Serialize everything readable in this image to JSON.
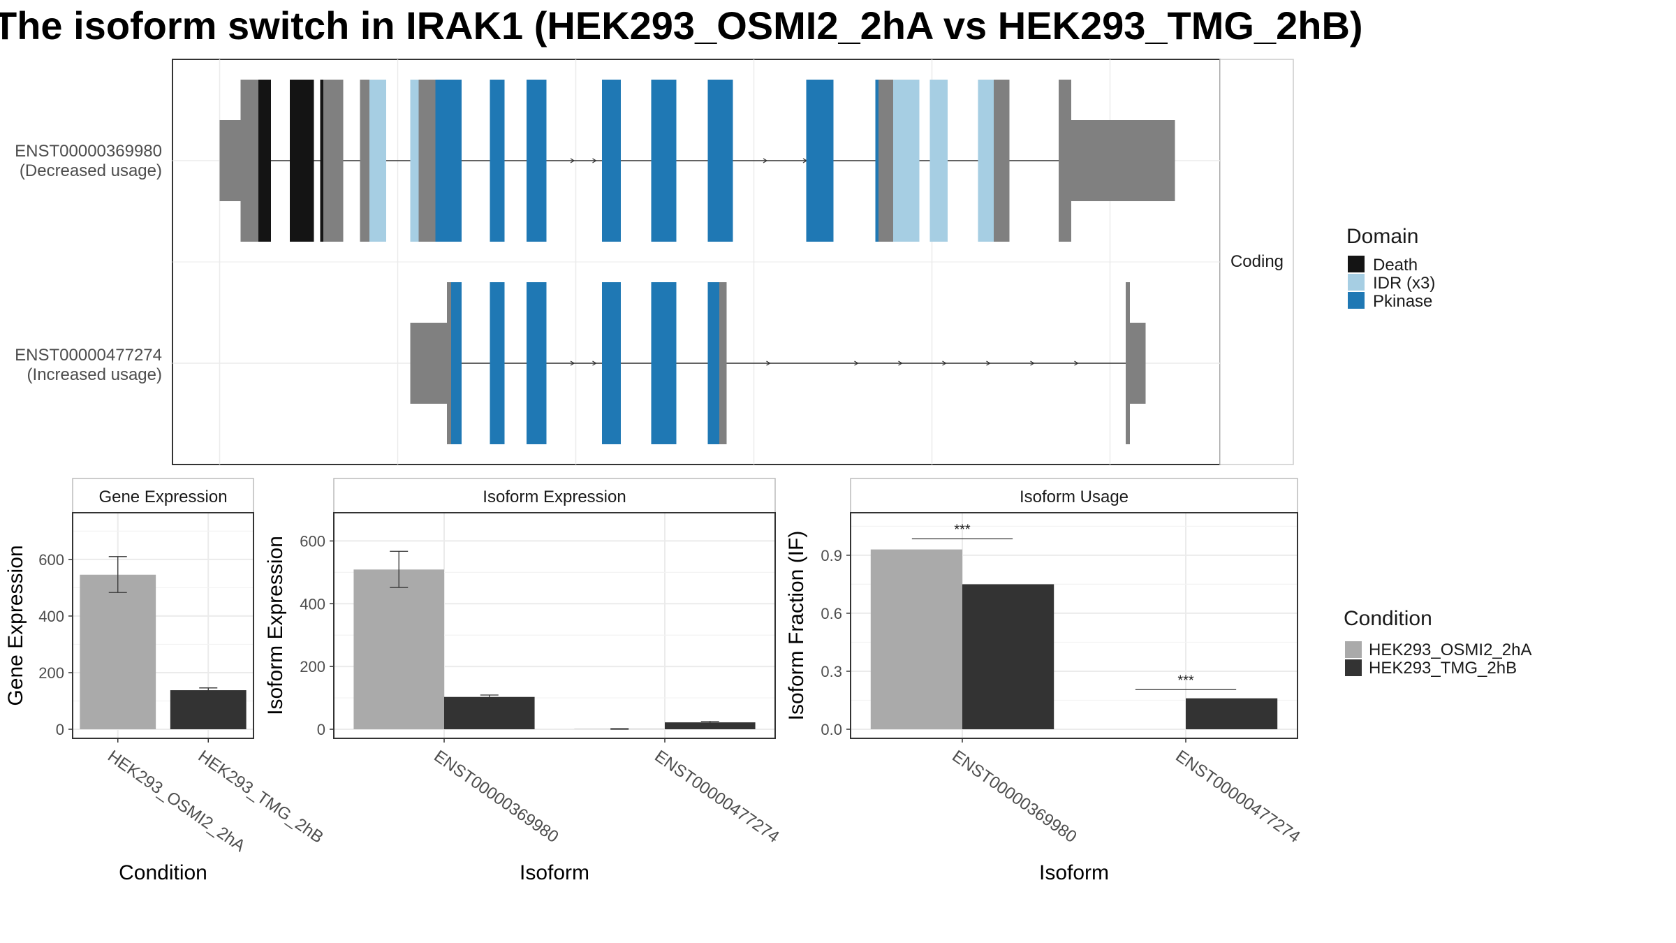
{
  "title": "The isoform switch in IRAK1 (HEK293_OSMI2_2hA vs HEK293_TMG_2hB)",
  "colors": {
    "death": "#141414",
    "idr": "#a6cee3",
    "pkinase": "#1f78b4",
    "other": "#808080",
    "cond_a": "#aaaaaa",
    "cond_b": "#333333",
    "grid": "#ebebeb",
    "panel_border": "#333333",
    "strip_border": "#bbbbbb"
  },
  "structure_panel": {
    "facet_label": "Coding",
    "transcripts": [
      {
        "id": "ENST00000369980",
        "usage": "(Decreased usage)",
        "exons": [
          {
            "start": 0.045,
            "end": 0.065,
            "type": "utr"
          },
          {
            "start": 0.065,
            "end": 0.082,
            "type": "other"
          },
          {
            "start": 0.082,
            "end": 0.094,
            "type": "death"
          },
          {
            "start": 0.112,
            "end": 0.135,
            "type": "death"
          },
          {
            "start": 0.141,
            "end": 0.144,
            "type": "death"
          },
          {
            "start": 0.144,
            "end": 0.163,
            "type": "other"
          },
          {
            "start": 0.179,
            "end": 0.188,
            "type": "other"
          },
          {
            "start": 0.188,
            "end": 0.204,
            "type": "idr"
          },
          {
            "start": 0.227,
            "end": 0.235,
            "type": "idr"
          },
          {
            "start": 0.235,
            "end": 0.251,
            "type": "other"
          },
          {
            "start": 0.251,
            "end": 0.276,
            "type": "pkinase"
          },
          {
            "start": 0.303,
            "end": 0.317,
            "type": "pkinase"
          },
          {
            "start": 0.338,
            "end": 0.357,
            "type": "pkinase"
          },
          {
            "start": 0.41,
            "end": 0.428,
            "type": "pkinase"
          },
          {
            "start": 0.457,
            "end": 0.481,
            "type": "pkinase"
          },
          {
            "start": 0.511,
            "end": 0.535,
            "type": "pkinase"
          },
          {
            "start": 0.605,
            "end": 0.631,
            "type": "pkinase"
          },
          {
            "start": 0.671,
            "end": 0.674,
            "type": "pkinase"
          },
          {
            "start": 0.674,
            "end": 0.688,
            "type": "other"
          },
          {
            "start": 0.688,
            "end": 0.713,
            "type": "idr"
          },
          {
            "start": 0.723,
            "end": 0.74,
            "type": "idr"
          },
          {
            "start": 0.769,
            "end": 0.784,
            "type": "idr"
          },
          {
            "start": 0.784,
            "end": 0.799,
            "type": "other"
          },
          {
            "start": 0.846,
            "end": 0.858,
            "type": "other"
          },
          {
            "start": 0.858,
            "end": 0.957,
            "type": "utr"
          }
        ],
        "arrows": [
          0.382,
          0.403,
          0.566,
          0.604
        ]
      },
      {
        "id": "ENST00000477274",
        "usage": "(Increased usage)",
        "exons": [
          {
            "start": 0.227,
            "end": 0.262,
            "type": "utr"
          },
          {
            "start": 0.262,
            "end": 0.266,
            "type": "other"
          },
          {
            "start": 0.266,
            "end": 0.276,
            "type": "pkinase"
          },
          {
            "start": 0.303,
            "end": 0.317,
            "type": "pkinase"
          },
          {
            "start": 0.338,
            "end": 0.357,
            "type": "pkinase"
          },
          {
            "start": 0.41,
            "end": 0.428,
            "type": "pkinase"
          },
          {
            "start": 0.457,
            "end": 0.481,
            "type": "pkinase"
          },
          {
            "start": 0.511,
            "end": 0.522,
            "type": "pkinase"
          },
          {
            "start": 0.522,
            "end": 0.529,
            "type": "other"
          },
          {
            "start": 0.91,
            "end": 0.914,
            "type": "other"
          },
          {
            "start": 0.914,
            "end": 0.929,
            "type": "utr"
          }
        ],
        "arrows": [
          0.382,
          0.403,
          0.569,
          0.653,
          0.695,
          0.737,
          0.779,
          0.821,
          0.863
        ]
      }
    ]
  },
  "domain_legend": {
    "title": "Domain",
    "items": [
      {
        "label": "Death",
        "color": "#141414"
      },
      {
        "label": "IDR (x3)",
        "color": "#a6cee3"
      },
      {
        "label": "Pkinase",
        "color": "#1f78b4"
      }
    ]
  },
  "condition_legend": {
    "title": "Condition",
    "items": [
      {
        "label": "HEK293_OSMI2_2hA",
        "color": "#aaaaaa"
      },
      {
        "label": "HEK293_TMG_2hB",
        "color": "#333333"
      }
    ]
  },
  "chart_data": [
    {
      "type": "bar",
      "title": "Gene Expression",
      "xlabel": "Condition",
      "ylabel": "Gene Expression",
      "categories": [
        "HEK293_OSMI2_2hA",
        "HEK293_TMG_2hB"
      ],
      "values": [
        546,
        138
      ],
      "error_low": [
        483,
        130
      ],
      "error_high": [
        610,
        146
      ],
      "yticks": [
        0,
        200,
        400,
        600
      ],
      "ylim": [
        0,
        765
      ],
      "grid": true
    },
    {
      "type": "bar",
      "title": "Isoform Expression",
      "xlabel": "Isoform",
      "ylabel": "Isoform Expression",
      "categories": [
        "ENST00000369980",
        "ENST00000477274"
      ],
      "series": [
        {
          "name": "HEK293_OSMI2_2hA",
          "values": [
            509,
            1
          ],
          "error_low": [
            452,
            0
          ],
          "error_high": [
            567,
            2
          ]
        },
        {
          "name": "HEK293_TMG_2hB",
          "values": [
            103,
            22
          ],
          "error_low": [
            97,
            19
          ],
          "error_high": [
            109,
            25
          ]
        }
      ],
      "yticks": [
        0,
        200,
        400,
        600
      ],
      "ylim": [
        0,
        690
      ],
      "grid": true
    },
    {
      "type": "bar",
      "title": "Isoform Usage",
      "xlabel": "Isoform",
      "ylabel": "Isoform Fraction (IF)",
      "categories": [
        "ENST00000369980",
        "ENST00000477274"
      ],
      "series": [
        {
          "name": "HEK293_OSMI2_2hA",
          "values": [
            0.93,
            0.0
          ]
        },
        {
          "name": "HEK293_TMG_2hB",
          "values": [
            0.75,
            0.16
          ]
        }
      ],
      "yticks": [
        0.0,
        0.3,
        0.6,
        0.9
      ],
      "ytick_labels": [
        "0.0",
        "0.3",
        "0.6",
        "0.9"
      ],
      "ylim": [
        0,
        1.12
      ],
      "significance": [
        {
          "category_index": 0,
          "label": "***",
          "y": 0.985
        },
        {
          "category_index": 1,
          "label": "***",
          "y": 0.205
        }
      ],
      "grid": true
    }
  ]
}
